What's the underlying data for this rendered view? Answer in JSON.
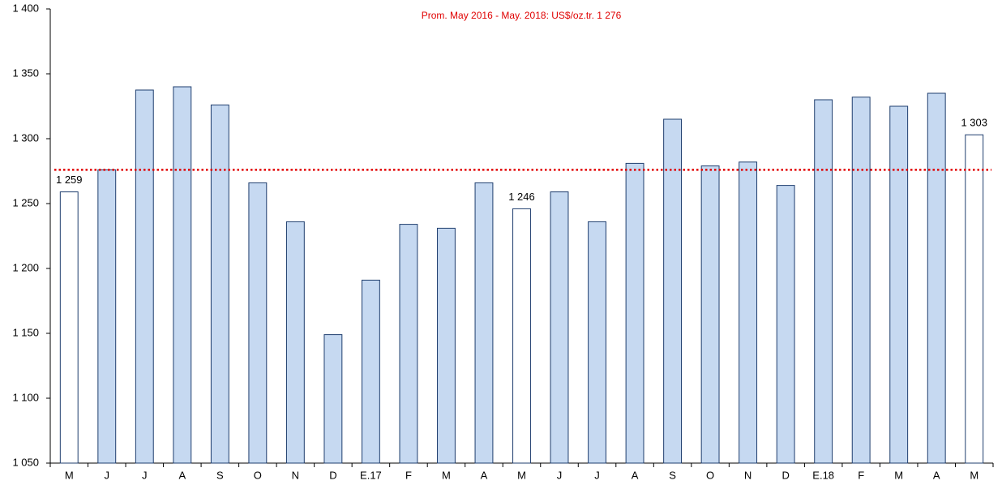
{
  "chart_data": {
    "type": "bar",
    "title": "Prom. May 2016 - May. 2018: US$/oz.tr. 1 276",
    "categories": [
      "M",
      "J",
      "J",
      "A",
      "S",
      "O",
      "N",
      "D",
      "E.17",
      "F",
      "M",
      "A",
      "M",
      "J",
      "J",
      "A",
      "S",
      "O",
      "N",
      "D",
      "E.18",
      "F",
      "M",
      "A",
      "M"
    ],
    "values": [
      1259,
      1276,
      1337.5,
      1340,
      1326,
      1266,
      1236,
      1149,
      1191,
      1234,
      1231,
      1266,
      1246,
      1259,
      1236,
      1281,
      1315,
      1279,
      1282,
      1264,
      1330,
      1332,
      1325,
      1335,
      1303
    ],
    "value_labels": [
      "1 259",
      null,
      null,
      null,
      null,
      null,
      null,
      null,
      null,
      null,
      null,
      null,
      "1 246",
      null,
      null,
      null,
      null,
      null,
      null,
      null,
      null,
      null,
      null,
      null,
      "1 303"
    ],
    "colors": [
      "#ffffff",
      "#c6d9f1",
      "#c6d9f1",
      "#c6d9f1",
      "#c6d9f1",
      "#c6d9f1",
      "#c6d9f1",
      "#c6d9f1",
      "#c6d9f1",
      "#c6d9f1",
      "#c6d9f1",
      "#c6d9f1",
      "#ffffff",
      "#c6d9f1",
      "#c6d9f1",
      "#c6d9f1",
      "#c6d9f1",
      "#c6d9f1",
      "#c6d9f1",
      "#c6d9f1",
      "#c6d9f1",
      "#c6d9f1",
      "#c6d9f1",
      "#c6d9f1",
      "#ffffff"
    ],
    "edge_color": "#1f3e6e",
    "average": {
      "value": 1276,
      "color": "#e00000"
    },
    "ylim": [
      1050,
      1400
    ],
    "yticks": [
      {
        "value": 1050,
        "label": "1 050"
      },
      {
        "value": 1100,
        "label": "1 100"
      },
      {
        "value": 1150,
        "label": "1 150"
      },
      {
        "value": 1200,
        "label": "1 200"
      },
      {
        "value": 1250,
        "label": "1 250"
      },
      {
        "value": 1300,
        "label": "1 300"
      },
      {
        "value": 1350,
        "label": "1 350"
      },
      {
        "value": 1400,
        "label": "1 400"
      }
    ]
  }
}
